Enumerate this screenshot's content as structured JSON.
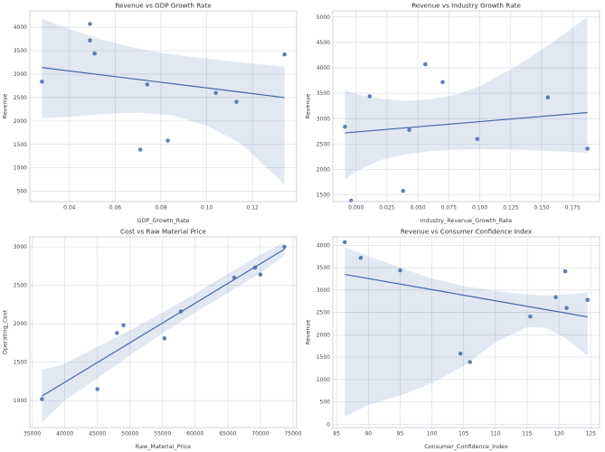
{
  "style": {
    "point_color": "#4c72b0",
    "point_edge_color": "#39588c",
    "line_color": "#3f67a8",
    "band_color": "#4c72b0",
    "band_opacity": 0.16,
    "grid_color": "#dcdee9",
    "spine_color": "#cdced9",
    "tick_color": "#47474d",
    "plot_bg": "#ffffff",
    "figure_bg": "#ffffff"
  },
  "chart_data": [
    {
      "type": "scatter",
      "title": "Revenue vs GDP Growth Rate",
      "xlabel": "GDP_Growth_Rate",
      "ylabel": "Revenue",
      "xlim": [
        0.0227,
        0.1393
      ],
      "ylim": [
        280,
        4350
      ],
      "xticks": [
        0.04,
        0.06,
        0.08,
        0.1,
        0.12
      ],
      "xtick_labels": [
        "0.04",
        "0.06",
        "0.08",
        "0.10",
        "0.12"
      ],
      "yticks": [
        500,
        1000,
        1500,
        2000,
        2500,
        3000,
        3500,
        4000
      ],
      "ytick_labels": [
        "500",
        "1000",
        "1500",
        "2000",
        "2500",
        "3000",
        "3500",
        "4000"
      ],
      "grid": true,
      "legend": false,
      "points": [
        [
          0.028,
          2840
        ],
        [
          0.049,
          4070
        ],
        [
          0.049,
          3720
        ],
        [
          0.051,
          3440
        ],
        [
          0.071,
          1390
        ],
        [
          0.074,
          2780
        ],
        [
          0.083,
          1580
        ],
        [
          0.104,
          2600
        ],
        [
          0.113,
          2410
        ],
        [
          0.134,
          3420
        ]
      ],
      "regression": {
        "x": [
          0.028,
          0.134
        ],
        "y": [
          3140,
          2500
        ]
      },
      "ci_band": {
        "x": [
          0.028,
          0.04,
          0.055,
          0.07,
          0.085,
          0.1,
          0.115,
          0.134
        ],
        "upper": [
          4180,
          3960,
          3730,
          3540,
          3420,
          3330,
          3250,
          3160
        ],
        "lower": [
          2060,
          2090,
          2150,
          2180,
          2120,
          1900,
          1520,
          640
        ]
      }
    },
    {
      "type": "scatter",
      "title": "Revenue vs Industry Growth Rate",
      "xlabel": "Industry_Revenue_Growth_Rate",
      "ylabel": "Revenue",
      "xlim": [
        -0.0188,
        0.1968
      ],
      "ylim": [
        1370,
        5120
      ],
      "xticks": [
        0.0,
        0.025,
        0.05,
        0.075,
        0.1,
        0.125,
        0.15,
        0.175
      ],
      "xtick_labels": [
        "0.000",
        "0.025",
        "0.050",
        "0.075",
        "0.100",
        "0.125",
        "0.150",
        "0.175"
      ],
      "yticks": [
        1500,
        2000,
        2500,
        3000,
        3500,
        4000,
        4500,
        5000
      ],
      "ytick_labels": [
        "1500",
        "2000",
        "2500",
        "3000",
        "3500",
        "4000",
        "4500",
        "5000"
      ],
      "grid": true,
      "legend": false,
      "points": [
        [
          -0.009,
          2840
        ],
        [
          -0.004,
          1390
        ],
        [
          0.011,
          3440
        ],
        [
          0.038,
          1580
        ],
        [
          0.043,
          2780
        ],
        [
          0.056,
          4070
        ],
        [
          0.07,
          3720
        ],
        [
          0.098,
          2600
        ],
        [
          0.155,
          3420
        ],
        [
          0.187,
          2410
        ]
      ],
      "regression": {
        "x": [
          -0.009,
          0.187
        ],
        "y": [
          2720,
          3120
        ]
      },
      "ci_band": {
        "x": [
          -0.009,
          0.0,
          0.02,
          0.04,
          0.06,
          0.08,
          0.1,
          0.13,
          0.16,
          0.187
        ],
        "upper": [
          3560,
          3480,
          3390,
          3350,
          3380,
          3470,
          3640,
          4040,
          4520,
          5000
        ],
        "lower": [
          1800,
          1960,
          2190,
          2300,
          2360,
          2390,
          2400,
          2390,
          2360,
          2330
        ]
      }
    },
    {
      "type": "scatter",
      "title": "Cost vs Raw Material Price",
      "xlabel": "Raw_Material_Price",
      "ylabel": "Operating_Cost",
      "xlim": [
        34640,
        75560
      ],
      "ylim": [
        650,
        3130
      ],
      "xticks": [
        35000,
        40000,
        45000,
        50000,
        55000,
        60000,
        65000,
        70000,
        75000
      ],
      "xtick_labels": [
        "35000",
        "40000",
        "45000",
        "50000",
        "55000",
        "60000",
        "65000",
        "70000",
        "75000"
      ],
      "yticks": [
        1000,
        1500,
        2000,
        2500,
        3000
      ],
      "ytick_labels": [
        "1000",
        "1500",
        "2000",
        "2500",
        "3000"
      ],
      "grid": true,
      "legend": false,
      "points": [
        [
          36500,
          1020
        ],
        [
          45000,
          1150
        ],
        [
          48000,
          1880
        ],
        [
          49000,
          1980
        ],
        [
          55300,
          1810
        ],
        [
          57800,
          2160
        ],
        [
          66000,
          2600
        ],
        [
          69200,
          2730
        ],
        [
          70000,
          2640
        ],
        [
          73700,
          3000
        ]
      ],
      "regression": {
        "x": [
          36500,
          73700
        ],
        "y": [
          1060,
          2970
        ]
      },
      "ci_band": {
        "x": [
          36500,
          40000,
          45000,
          50000,
          55000,
          60000,
          65000,
          70000,
          73700
        ],
        "upper": [
          1400,
          1480,
          1700,
          1915,
          2145,
          2390,
          2650,
          2900,
          3060
        ],
        "lower": [
          720,
          1000,
          1290,
          1590,
          1875,
          2145,
          2400,
          2660,
          2880
        ]
      }
    },
    {
      "type": "scatter",
      "title": "Revenue vs Consumer Confidence Index",
      "xlabel": "Consumer_Confidence_Index",
      "ylabel": "Revenue",
      "xlim": [
        84.4,
        126.4
      ],
      "ylim": [
        -75,
        4190
      ],
      "xticks": [
        85,
        90,
        95,
        100,
        105,
        110,
        115,
        120,
        125
      ],
      "xtick_labels": [
        "85",
        "90",
        "95",
        "100",
        "105",
        "110",
        "115",
        "120",
        "125"
      ],
      "yticks": [
        0,
        500,
        1000,
        1500,
        2000,
        2500,
        3000,
        3500,
        4000
      ],
      "ytick_labels": [
        "0",
        "500",
        "1000",
        "1500",
        "2000",
        "2500",
        "3000",
        "3500",
        "4000"
      ],
      "grid": true,
      "legend": false,
      "points": [
        [
          86.3,
          4070
        ],
        [
          88.8,
          3720
        ],
        [
          95.0,
          3440
        ],
        [
          104.5,
          1580
        ],
        [
          106.0,
          1390
        ],
        [
          115.5,
          2410
        ],
        [
          119.5,
          2840
        ],
        [
          121.0,
          3420
        ],
        [
          121.2,
          2600
        ],
        [
          124.5,
          2780
        ]
      ],
      "regression": {
        "x": [
          86.3,
          124.5
        ],
        "y": [
          3350,
          2400
        ]
      },
      "ci_band": {
        "x": [
          86.3,
          90,
          95,
          100,
          105,
          110,
          115,
          118,
          121,
          124.5
        ],
        "upper": [
          3960,
          3760,
          3500,
          3260,
          3090,
          2980,
          2900,
          2880,
          2900,
          2950
        ],
        "lower": [
          170,
          430,
          640,
          920,
          1300,
          1830,
          2170,
          2150,
          1930,
          1530
        ]
      }
    }
  ]
}
